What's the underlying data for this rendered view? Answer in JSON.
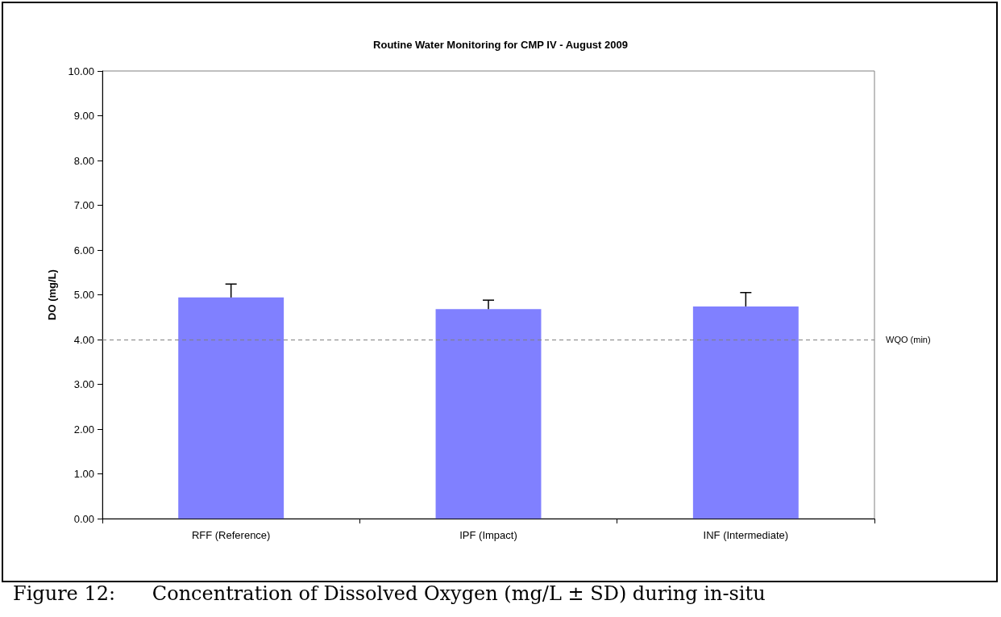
{
  "chart_data": {
    "type": "bar",
    "title": "Routine Water Monitoring for CMP IV - August 2009",
    "ylabel": "DO (mg/L)",
    "categories": [
      "RFF (Reference)",
      "IPF (Impact)",
      "INF (Intermediate)"
    ],
    "values": [
      4.94,
      4.68,
      4.74
    ],
    "errors": [
      0.3,
      0.2,
      0.31
    ],
    "color": "#8080ff",
    "ylim": [
      0,
      10
    ],
    "yticks": [
      {
        "value": 0,
        "label": "0.00"
      },
      {
        "value": 1,
        "label": "1.00"
      },
      {
        "value": 2,
        "label": "2.00"
      },
      {
        "value": 3,
        "label": "3.00"
      },
      {
        "value": 4,
        "label": "4.00"
      },
      {
        "value": 5,
        "label": "5.00"
      },
      {
        "value": 6,
        "label": "6.00"
      },
      {
        "value": 7,
        "label": "7.00"
      },
      {
        "value": 8,
        "label": "8.00"
      },
      {
        "value": 9,
        "label": "9.00"
      },
      {
        "value": 10,
        "label": "10.00"
      }
    ],
    "grid": false,
    "ref_lines": [
      {
        "axis": "y",
        "value": 4,
        "label": "WQO (min)",
        "color": "#808080",
        "line_style": "dashed"
      }
    ],
    "annotations": [
      "Figure 12:      Concentration of Dissolved Oxygen (mg/L ± SD) during in-situ"
    ]
  }
}
